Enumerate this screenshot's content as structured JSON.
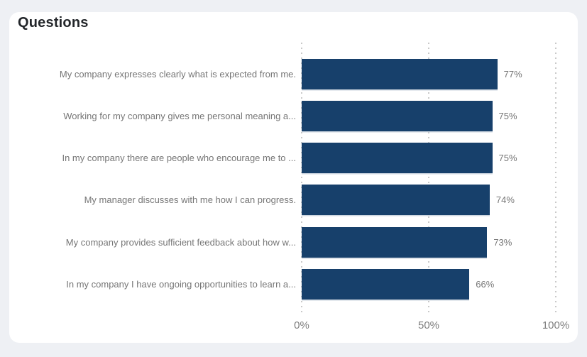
{
  "page_title": "Questions",
  "colors": {
    "page_bg": "#eef0f4",
    "card_bg": "#ffffff",
    "bar_fill": "#17406b",
    "title_text": "#23262a",
    "label_text": "#767676",
    "axis_text": "#7e7e7e",
    "gridline": "#c9c9c9"
  },
  "chart_data": {
    "type": "bar",
    "orientation": "horizontal",
    "title": "Questions",
    "categories": [
      "My company expresses clearly what is expected from me.",
      "Working for my company gives me personal meaning a...",
      "In my company there are people who encourage me to ...",
      "My manager discusses with me how I can progress.",
      "My company provides sufficient feedback about how w...",
      "In my company I have ongoing opportunities to learn a..."
    ],
    "values": [
      77,
      75,
      75,
      74,
      73,
      66
    ],
    "value_labels": [
      "77%",
      "75%",
      "75%",
      "74%",
      "73%",
      "66%"
    ],
    "x_ticks": [
      {
        "label": "0%",
        "value": 0
      },
      {
        "label": "50%",
        "value": 50
      },
      {
        "label": "100%",
        "value": 100
      }
    ],
    "xlim": [
      0,
      100
    ],
    "grid": "dotted-vertical",
    "legend": "none"
  }
}
